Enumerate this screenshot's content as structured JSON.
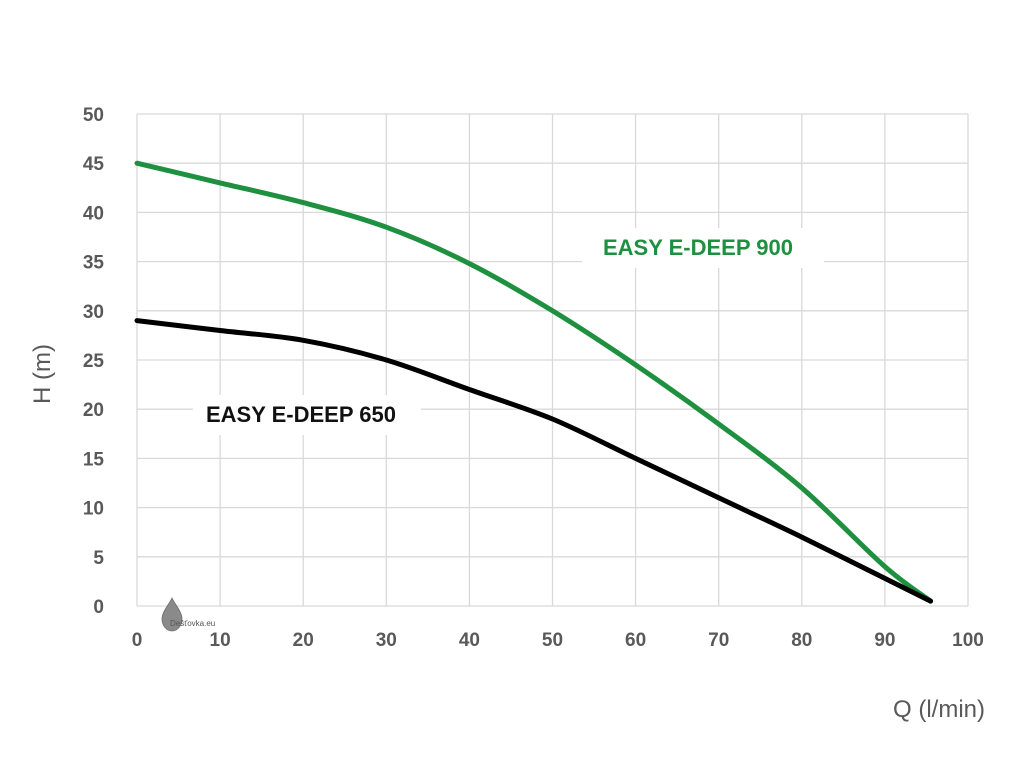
{
  "chart_data": {
    "type": "line",
    "xlabel": "Q (l/min)",
    "ylabel": "H (m)",
    "xlim": [
      0,
      100
    ],
    "ylim": [
      0,
      50
    ],
    "x_ticks": [
      0,
      10,
      20,
      30,
      40,
      50,
      60,
      70,
      80,
      90,
      100
    ],
    "y_ticks": [
      0,
      5,
      10,
      15,
      20,
      25,
      30,
      35,
      40,
      45,
      50
    ],
    "grid": true,
    "series": [
      {
        "name": "EASY E-DEEP 900",
        "color": "#1f9040",
        "x": [
          0,
          10,
          20,
          30,
          40,
          50,
          60,
          70,
          80,
          90,
          95.5
        ],
        "y": [
          45,
          43,
          41,
          38.5,
          34.8,
          30,
          24.5,
          18.5,
          12,
          4,
          0.5
        ]
      },
      {
        "name": "EASY E-DEEP 650",
        "color": "#000000",
        "x": [
          0,
          10,
          20,
          30,
          40,
          50,
          60,
          70,
          80,
          90,
          95.5
        ],
        "y": [
          29,
          28,
          27,
          25,
          22,
          19,
          15,
          11,
          7,
          2.8,
          0.5
        ]
      }
    ]
  },
  "watermark": {
    "text": "Dešťovka.eu",
    "icon": "water-drop-icon"
  }
}
